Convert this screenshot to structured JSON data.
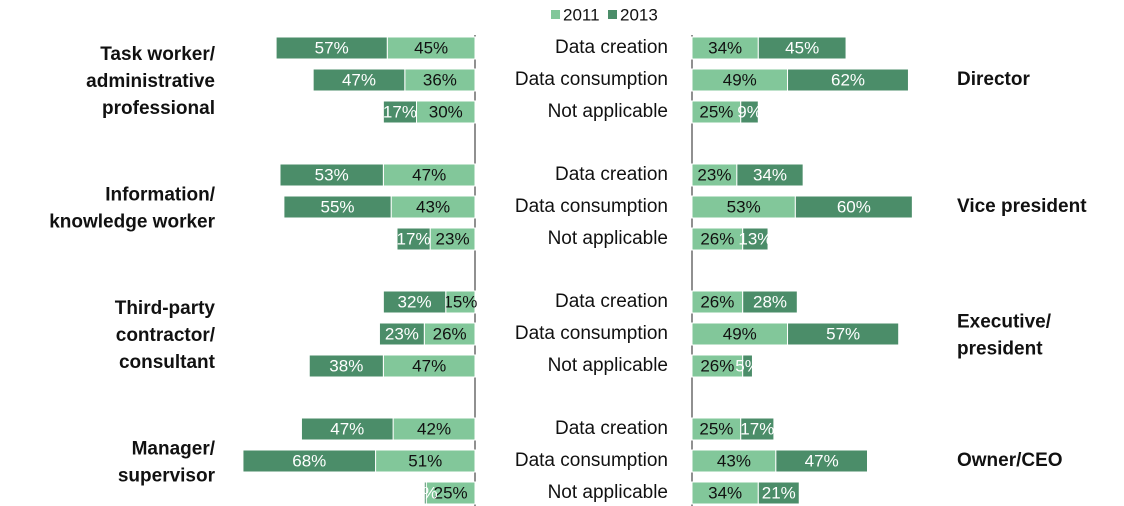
{
  "chart_data": {
    "type": "butterfly_bar",
    "categories": [
      "Data creation",
      "Data consumption",
      "Not applicable"
    ],
    "series": [
      {
        "name": "2011",
        "color": "#82c79a"
      },
      {
        "name": "2013",
        "color": "#4b8d69"
      }
    ],
    "panels": [
      {
        "side": "left",
        "groups": [
          {
            "label": [
              "Task worker/",
              "administrative",
              "professional"
            ],
            "series": [
              {
                "values": [
                  45,
                  36,
                  30
                ],
                "value_labels": [
                  "45%",
                  "36%",
                  "30%"
                ]
              },
              {
                "values": [
                  57,
                  47,
                  17
                ],
                "value_labels": [
                  "57%",
                  "47%",
                  "17%"
                ]
              }
            ]
          },
          {
            "label": [
              "Information/",
              "knowledge worker"
            ],
            "series": [
              {
                "values": [
                  47,
                  43,
                  23
                ],
                "value_labels": [
                  "47%",
                  "43%",
                  "23%"
                ]
              },
              {
                "values": [
                  53,
                  55,
                  17
                ],
                "value_labels": [
                  "53%",
                  "55%",
                  "17%"
                ]
              }
            ]
          },
          {
            "label": [
              "Third-party",
              "contractor/",
              "consultant"
            ],
            "series": [
              {
                "values": [
                  15,
                  26,
                  47
                ],
                "value_labels": [
                  "15%",
                  "26%",
                  "47%"
                ]
              },
              {
                "values": [
                  32,
                  23,
                  38
                ],
                "value_labels": [
                  "32%",
                  "23%",
                  "38%"
                ]
              }
            ]
          },
          {
            "label": [
              "Manager/",
              "supervisor"
            ],
            "series": [
              {
                "values": [
                  42,
                  51,
                  25
                ],
                "value_labels": [
                  "42%",
                  "51%",
                  "25%"
                ]
              },
              {
                "values": [
                  47,
                  68,
                  1
                ],
                "value_labels": [
                  "47%",
                  "68%",
                  "1%"
                ]
              }
            ]
          }
        ]
      },
      {
        "side": "right",
        "groups": [
          {
            "label": [
              "Director"
            ],
            "series": [
              {
                "values": [
                  34,
                  49,
                  25
                ],
                "value_labels": [
                  "34%",
                  "49%",
                  "25%"
                ]
              },
              {
                "values": [
                  45,
                  62,
                  9
                ],
                "value_labels": [
                  "45%",
                  "62%",
                  "9%"
                ]
              }
            ]
          },
          {
            "label": [
              "Vice president"
            ],
            "series": [
              {
                "values": [
                  23,
                  53,
                  26
                ],
                "value_labels": [
                  "23%",
                  "53%",
                  "26%"
                ]
              },
              {
                "values": [
                  34,
                  60,
                  13
                ],
                "value_labels": [
                  "34%",
                  "60%",
                  "13%"
                ]
              }
            ]
          },
          {
            "label": [
              "Executive/",
              "president"
            ],
            "series": [
              {
                "values": [
                  26,
                  49,
                  26
                ],
                "value_labels": [
                  "26%",
                  "49%",
                  "26%"
                ]
              },
              {
                "values": [
                  28,
                  57,
                  5
                ],
                "value_labels": [
                  "28%",
                  "57%",
                  "5%"
                ]
              }
            ]
          },
          {
            "label": [
              "Owner/CEO"
            ],
            "series": [
              {
                "values": [
                  25,
                  43,
                  34
                ],
                "value_labels": [
                  "25%",
                  "43%",
                  "34%"
                ]
              },
              {
                "values": [
                  17,
                  47,
                  21
                ],
                "value_labels": [
                  "17%",
                  "47%",
                  "21%"
                ]
              }
            ]
          }
        ]
      }
    ]
  }
}
